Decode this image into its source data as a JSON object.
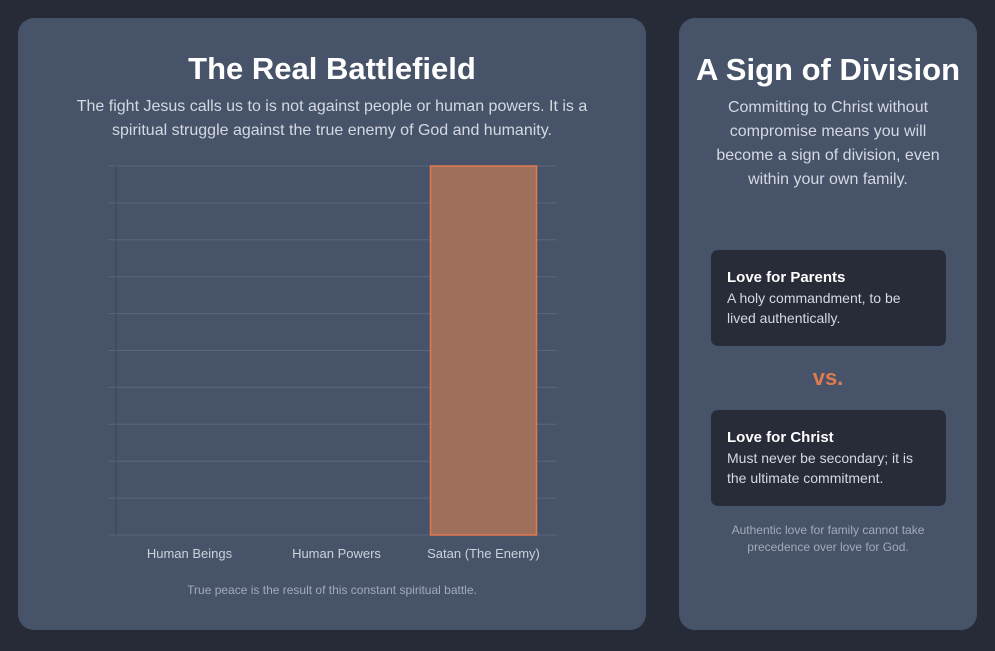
{
  "left": {
    "title": "The Real Battlefield",
    "description": "The fight Jesus calls us to is not against people or human powers. It is a spiritual struggle against the true enemy of God and humanity.",
    "footnote": "True peace is the result of this constant spiritual battle."
  },
  "chart_data": {
    "type": "bar",
    "categories": [
      "Human Beings",
      "Human Powers",
      "Satan (The Enemy)"
    ],
    "values": [
      0,
      0,
      100
    ],
    "ylim": [
      0,
      100
    ],
    "grid": true,
    "bar_color": "#a06f5c",
    "bar_border": "#e07b4f"
  },
  "right": {
    "title": "A Sign of Division",
    "description": "Committing to Christ without compromise means you will become a sign of division, even within your own family.",
    "cards": [
      {
        "title": "Love for Parents",
        "text": "A holy commandment, to be lived authentically."
      },
      {
        "title": "Love for Christ",
        "text": "Must never be secondary; it is the ultimate commitment."
      }
    ],
    "versus": "vs.",
    "footnote": "Authentic love for family cannot take precedence over love for God."
  },
  "colors": {
    "background": "#272a37",
    "card": "#475369",
    "accent": "#e07b4f"
  }
}
